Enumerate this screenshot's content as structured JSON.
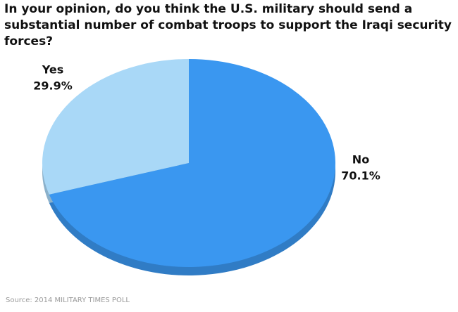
{
  "chart_data": {
    "type": "pie",
    "title": "In your opinion, do you think the U.S. military should send a substantial number of combat troops to support the Iraqi security forces?",
    "categories": [
      "Yes",
      "No"
    ],
    "values": [
      29.9,
      70.1
    ],
    "value_labels": [
      "29.9%",
      "70.1%"
    ],
    "colors": [
      "#a9d8f7",
      "#3a97f0"
    ],
    "source": "Source: 2014 MILITARY TIMES POLL"
  }
}
